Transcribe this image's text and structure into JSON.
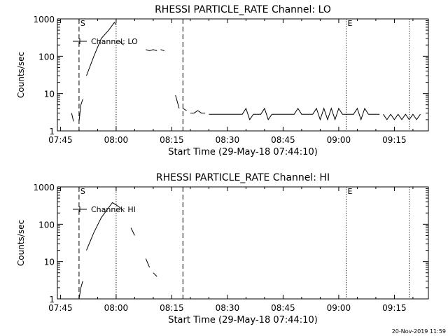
{
  "footer": {
    "timestamp": "20-Nov-2019 11:59"
  },
  "chart_data": [
    {
      "type": "line",
      "title": "RHESSI PARTICLE_RATE Channel: LO",
      "xlabel": "Start Time (29-May-18 07:44:10)",
      "ylabel": "Counts/sec",
      "y_scale": "log",
      "ylim": [
        1,
        1000
      ],
      "xlim_minutes": [
        0,
        100
      ],
      "x_ticks": [
        "07:45",
        "08:00",
        "08:15",
        "08:30",
        "08:45",
        "09:00",
        "09:15"
      ],
      "y_ticks": [
        "1",
        "10",
        "100",
        "1000"
      ],
      "legend": {
        "label": "Channel: LO",
        "placement": "top-left"
      },
      "markers": [
        {
          "time": "07:50",
          "style": "dashed",
          "label": "S"
        },
        {
          "time": "08:00",
          "style": "dotted",
          "label": ""
        },
        {
          "time": "08:18",
          "style": "dashed",
          "label": ""
        },
        {
          "time": "09:02",
          "style": "dotted",
          "label": "E"
        },
        {
          "time": "09:19",
          "style": "dotted",
          "label": ""
        }
      ],
      "series": [
        {
          "segments": [
            [
              [
                "07:48",
                3
              ],
              [
                "07:48.5",
                1.8
              ]
            ],
            [
              [
                "07:50",
                1.8
              ],
              [
                "07:50.5",
                5
              ],
              [
                "07:51",
                7
              ]
            ],
            [
              [
                "07:52",
                30
              ],
              [
                "07:54",
                100
              ],
              [
                "07:56",
                300
              ],
              [
                "07:58",
                500
              ],
              [
                "07:59.5",
                800
              ],
              [
                "08:00",
                700
              ]
            ],
            [
              [
                "08:01",
                250
              ],
              [
                "08:02",
                200
              ]
            ],
            [
              [
                "08:08",
                150
              ],
              [
                "08:09",
                140
              ],
              [
                "08:10",
                150
              ],
              [
                "08:11",
                140
              ]
            ],
            [
              [
                "08:12",
                150
              ],
              [
                "08:13",
                140
              ]
            ],
            [
              [
                "08:16",
                9
              ],
              [
                "08:17",
                4
              ]
            ],
            [
              [
                "08:18",
                4
              ],
              [
                "08:19",
                3.5
              ]
            ],
            [
              [
                "08:20",
                3
              ],
              [
                "08:21",
                3
              ],
              [
                "08:22",
                3.5
              ],
              [
                "08:23",
                3
              ],
              [
                "08:24",
                3
              ]
            ],
            [
              [
                "08:25",
                2.8
              ],
              [
                "08:34",
                2.8
              ],
              [
                "08:35",
                4
              ],
              [
                "08:36",
                2
              ],
              [
                "08:37",
                2.8
              ],
              [
                "08:39",
                2.8
              ],
              [
                "08:40",
                4
              ],
              [
                "08:41",
                2
              ],
              [
                "08:42",
                2.8
              ],
              [
                "08:48",
                2.8
              ],
              [
                "08:49",
                4
              ],
              [
                "08:50",
                2.8
              ],
              [
                "08:53",
                2.8
              ],
              [
                "08:54",
                4
              ],
              [
                "08:55",
                2
              ],
              [
                "08:56",
                4
              ],
              [
                "08:57",
                2
              ],
              [
                "08:58",
                4
              ],
              [
                "08:59",
                2
              ],
              [
                "09:00",
                4
              ],
              [
                "09:01",
                2.8
              ],
              [
                "09:04",
                2.8
              ],
              [
                "09:05",
                4
              ],
              [
                "09:06",
                2
              ],
              [
                "09:07",
                4
              ],
              [
                "09:08",
                2.8
              ],
              [
                "09:11",
                2.8
              ]
            ],
            [
              [
                "09:12",
                2.8
              ],
              [
                "09:13",
                2
              ],
              [
                "09:14",
                2.8
              ],
              [
                "09:15",
                2
              ],
              [
                "09:16",
                2.8
              ],
              [
                "09:17",
                2
              ],
              [
                "09:18",
                2.8
              ],
              [
                "09:19",
                2
              ],
              [
                "09:20",
                2.8
              ],
              [
                "09:21",
                2
              ],
              [
                "09:22",
                2.8
              ]
            ]
          ]
        }
      ]
    },
    {
      "type": "line",
      "title": "RHESSI PARTICLE_RATE Channel: HI",
      "xlabel": "Start Time (29-May-18 07:44:10)",
      "ylabel": "Counts/sec",
      "y_scale": "log",
      "ylim": [
        1,
        1000
      ],
      "xlim_minutes": [
        0,
        100
      ],
      "x_ticks": [
        "07:45",
        "08:00",
        "08:15",
        "08:30",
        "08:45",
        "09:00",
        "09:15"
      ],
      "y_ticks": [
        "1",
        "10",
        "100",
        "1000"
      ],
      "legend": {
        "label": "Channel: HI",
        "placement": "top-left"
      },
      "markers": [
        {
          "time": "07:50",
          "style": "dashed",
          "label": "S"
        },
        {
          "time": "08:00",
          "style": "dotted",
          "label": ""
        },
        {
          "time": "08:18",
          "style": "dashed",
          "label": ""
        },
        {
          "time": "09:02",
          "style": "dotted",
          "label": "E"
        },
        {
          "time": "09:19",
          "style": "dotted",
          "label": ""
        }
      ],
      "series": [
        {
          "segments": [
            [
              [
                "07:50",
                1
              ],
              [
                "07:50.5",
                2
              ],
              [
                "07:51",
                3
              ]
            ],
            [
              [
                "07:52",
                20
              ],
              [
                "07:54",
                60
              ],
              [
                "07:56",
                150
              ],
              [
                "07:58",
                280
              ],
              [
                "07:59",
                380
              ],
              [
                "08:00",
                330
              ],
              [
                "08:01",
                280
              ],
              [
                "08:02",
                230
              ]
            ],
            [
              [
                "08:04",
                80
              ],
              [
                "08:05",
                50
              ]
            ],
            [
              [
                "08:08",
                12
              ],
              [
                "08:09",
                7
              ]
            ],
            [
              [
                "08:10",
                5
              ],
              [
                "08:11",
                4
              ]
            ]
          ]
        }
      ]
    }
  ]
}
